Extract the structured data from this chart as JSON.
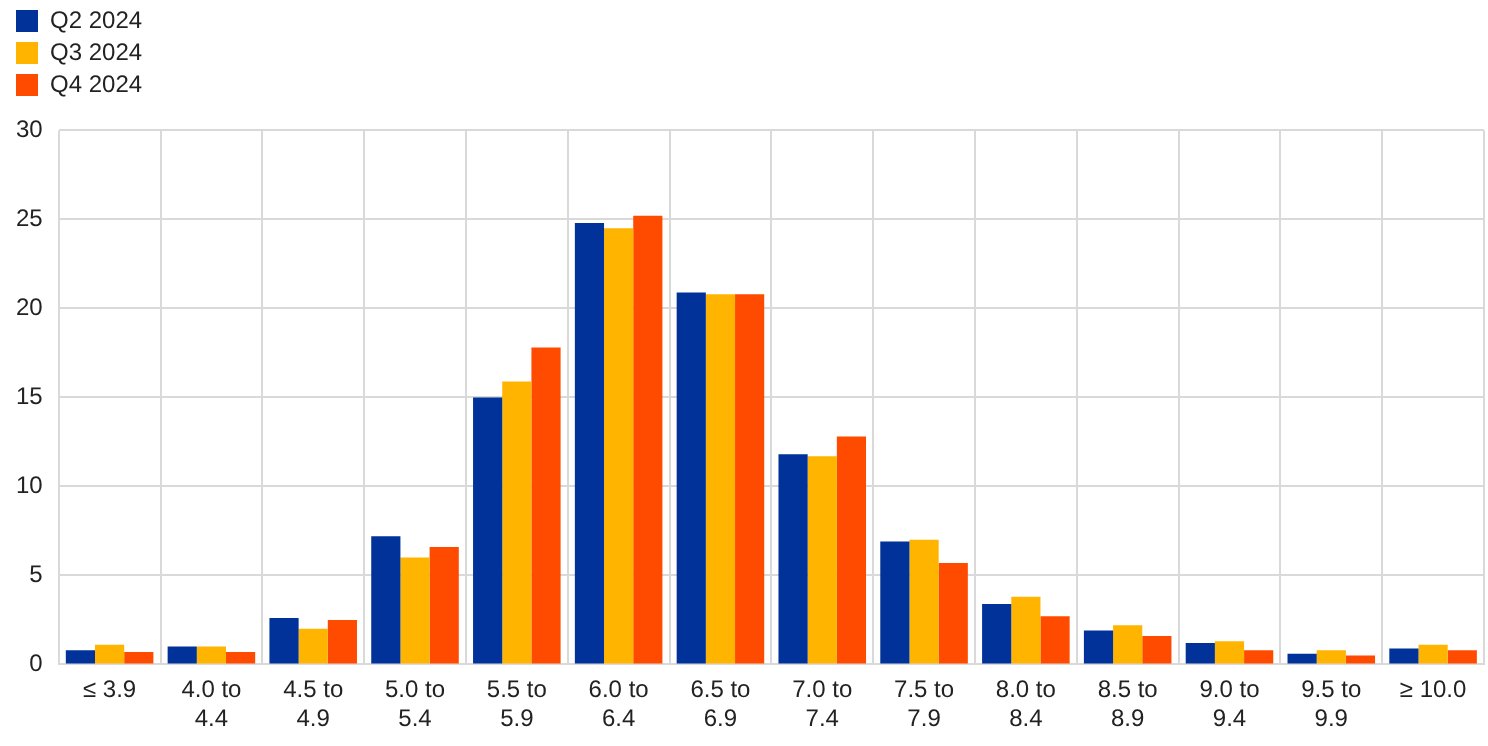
{
  "chart_data": {
    "type": "bar",
    "categories": [
      "≤ 3.9",
      "4.0 to 4.4",
      "4.5 to 4.9",
      "5.0 to 5.4",
      "5.5 to 5.9",
      "6.0 to 6.4",
      "6.5 to 6.9",
      "7.0 to 7.4",
      "7.5 to 7.9",
      "8.0 to 8.4",
      "8.5 to 8.9",
      "9.0 to 9.4",
      "9.5 to 9.9",
      "≥ 10.0"
    ],
    "series": [
      {
        "name": "Q2 2024",
        "color": "#003299",
        "values": [
          0.8,
          1.0,
          2.6,
          7.2,
          15.0,
          24.8,
          20.9,
          11.8,
          6.9,
          3.4,
          1.9,
          1.2,
          0.6,
          0.9
        ]
      },
      {
        "name": "Q3 2024",
        "color": "#ffb400",
        "values": [
          1.1,
          1.0,
          2.0,
          6.0,
          15.9,
          24.5,
          20.8,
          11.7,
          7.0,
          3.8,
          2.2,
          1.3,
          0.8,
          1.1
        ]
      },
      {
        "name": "Q4 2024",
        "color": "#ff4b00",
        "values": [
          0.7,
          0.7,
          2.5,
          6.6,
          17.8,
          25.2,
          20.8,
          12.8,
          5.7,
          2.7,
          1.6,
          0.8,
          0.5,
          0.8
        ]
      }
    ],
    "ylim": [
      0,
      30
    ],
    "yticks": [
      0,
      5,
      10,
      15,
      20,
      25,
      30
    ],
    "grid": true,
    "legend": "top left"
  }
}
